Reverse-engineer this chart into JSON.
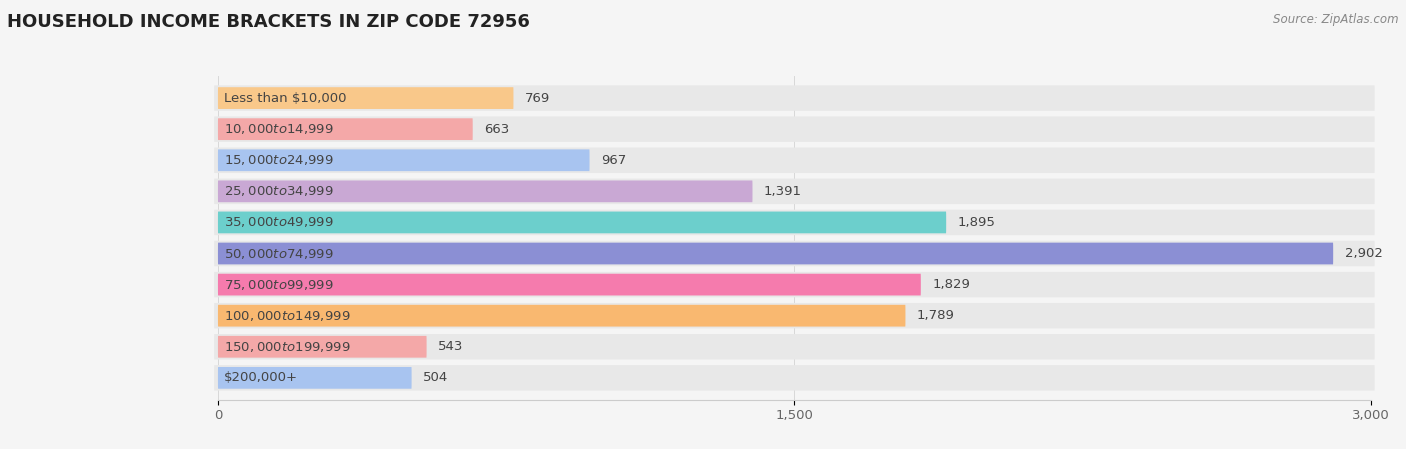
{
  "title": "HOUSEHOLD INCOME BRACKETS IN ZIP CODE 72956",
  "source": "Source: ZipAtlas.com",
  "categories": [
    "Less than $10,000",
    "$10,000 to $14,999",
    "$15,000 to $24,999",
    "$25,000 to $34,999",
    "$35,000 to $49,999",
    "$50,000 to $74,999",
    "$75,000 to $99,999",
    "$100,000 to $149,999",
    "$150,000 to $199,999",
    "$200,000+"
  ],
  "values": [
    769,
    663,
    967,
    1391,
    1895,
    2902,
    1829,
    1789,
    543,
    504
  ],
  "bar_colors": [
    "#F9C88A",
    "#F4A8A8",
    "#A8C4F0",
    "#C9A8D4",
    "#6CCFCC",
    "#8B8FD4",
    "#F57BAD",
    "#F9B870",
    "#F4A8A8",
    "#A8C4F0"
  ],
  "bg_color": "#f5f5f5",
  "bar_bg_color": "#e8e8e8",
  "xlim": [
    0,
    3000
  ],
  "xticks": [
    0,
    1500,
    3000
  ],
  "xtick_labels": [
    "0",
    "1,500",
    "3,000"
  ],
  "title_fontsize": 13,
  "label_fontsize": 9.5,
  "value_fontsize": 9.5,
  "bar_height": 0.7
}
